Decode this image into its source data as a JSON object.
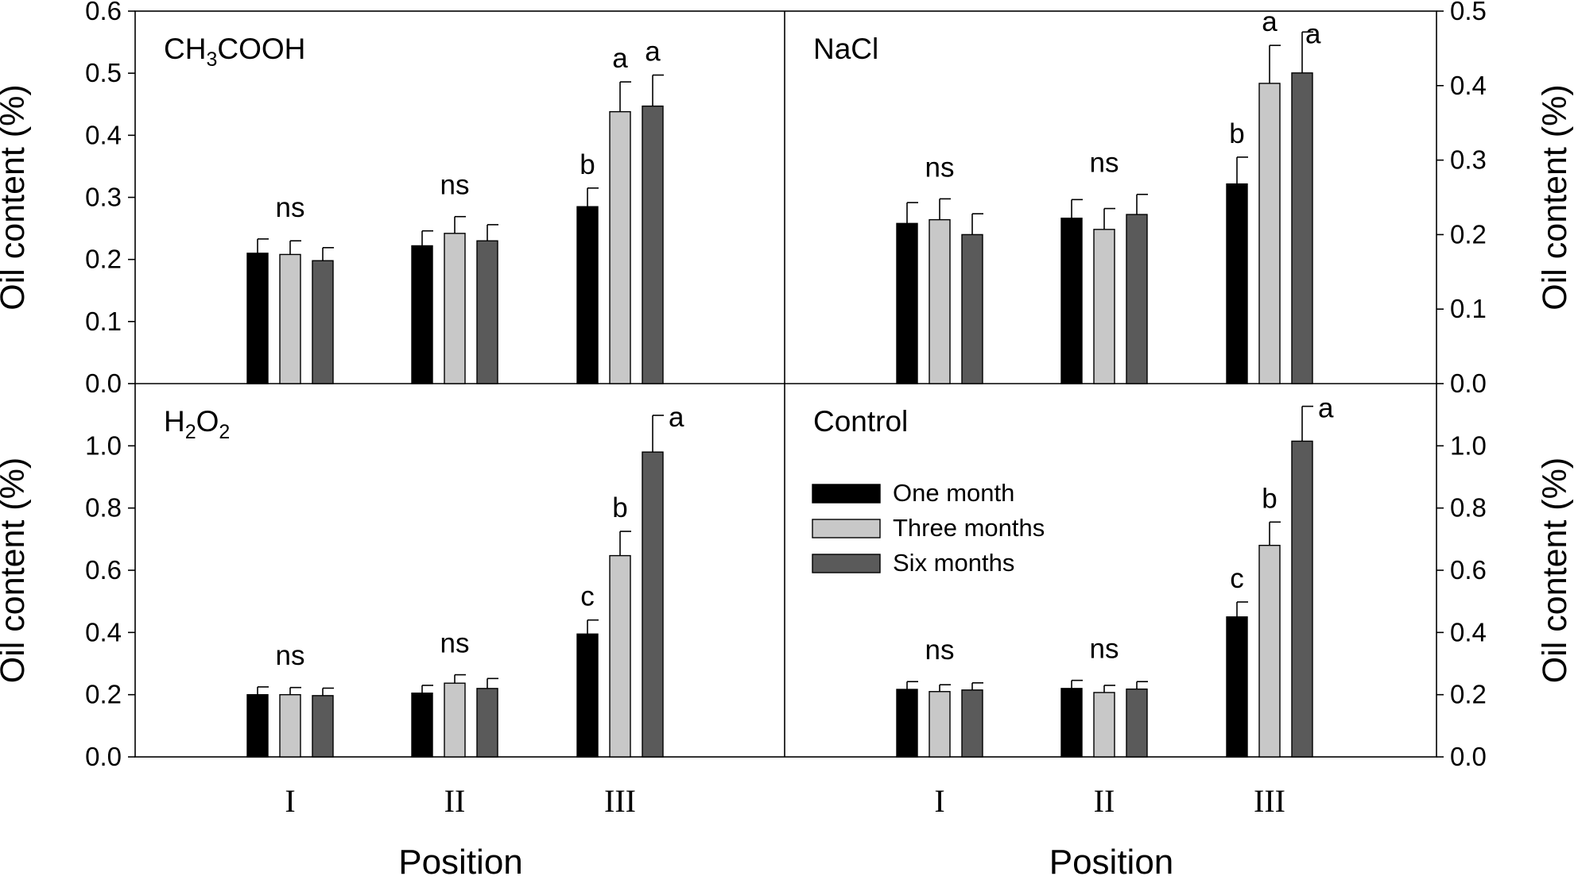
{
  "colors": {
    "one_month": "#000000",
    "three_months": "#c8c8c8",
    "six_months": "#5a5a5a",
    "axis": "#000000"
  },
  "chart_data": [
    {
      "type": "bar",
      "panel": "top-left",
      "label_main": "CH",
      "label_sub": "3",
      "label_rest": "COOH",
      "ylabel": "Oil content (%)",
      "ylabel_side": "left",
      "ylim": [
        0,
        0.6
      ],
      "yticks": [
        0.0,
        0.1,
        0.2,
        0.3,
        0.4,
        0.5,
        0.6
      ],
      "ytick_labels": [
        "0.0",
        "0.1",
        "0.2",
        "0.3",
        "0.4",
        "0.5",
        "0.6"
      ],
      "categories": [
        "I",
        "II",
        "III"
      ],
      "series": [
        {
          "name": "One month",
          "values": [
            0.21,
            0.222,
            0.285
          ],
          "errors": [
            0.023,
            0.024,
            0.03
          ]
        },
        {
          "name": "Three months",
          "values": [
            0.208,
            0.242,
            0.438
          ],
          "errors": [
            0.022,
            0.027,
            0.048
          ]
        },
        {
          "name": "Six months",
          "values": [
            0.198,
            0.23,
            0.447
          ],
          "errors": [
            0.021,
            0.026,
            0.05
          ]
        }
      ],
      "annotations": [
        {
          "category": "I",
          "text": "ns"
        },
        {
          "category": "II",
          "text": "ns"
        },
        {
          "category": "III",
          "texts": [
            "b",
            "a",
            "a"
          ]
        }
      ]
    },
    {
      "type": "bar",
      "panel": "top-right",
      "label_main": "NaCl",
      "ylabel": "Oil content (%)",
      "ylabel_side": "right",
      "ylim": [
        0,
        0.5
      ],
      "yticks": [
        0.0,
        0.1,
        0.2,
        0.3,
        0.4,
        0.5
      ],
      "ytick_labels": [
        "0.0",
        "0.1",
        "0.2",
        "0.3",
        "0.4",
        "0.5"
      ],
      "categories": [
        "I",
        "II",
        "III"
      ],
      "series": [
        {
          "name": "One month",
          "values": [
            0.215,
            0.222,
            0.268
          ],
          "errors": [
            0.028,
            0.025,
            0.036
          ]
        },
        {
          "name": "Three months",
          "values": [
            0.22,
            0.207,
            0.403
          ],
          "errors": [
            0.028,
            0.028,
            0.051
          ]
        },
        {
          "name": "Six months",
          "values": [
            0.2,
            0.227,
            0.417
          ],
          "errors": [
            0.028,
            0.027,
            0.055
          ]
        }
      ],
      "annotations": [
        {
          "category": "I",
          "text": "ns"
        },
        {
          "category": "II",
          "text": "ns"
        },
        {
          "category": "III",
          "texts": [
            "b",
            "a",
            "a"
          ]
        }
      ]
    },
    {
      "type": "bar",
      "panel": "bottom-left",
      "label_main": "H",
      "label_sub": "2",
      "label_rest": "O",
      "label_sub2": "2",
      "ylabel": "Oil content (%)",
      "ylabel_side": "left",
      "ylim": [
        0,
        1.2
      ],
      "yticks": [
        0.0,
        0.2,
        0.4,
        0.6,
        0.8,
        1.0
      ],
      "ytick_labels": [
        "0.0",
        "0.2",
        "0.4",
        "0.6",
        "0.8",
        "1.0"
      ],
      "categories": [
        "I",
        "II",
        "III"
      ],
      "xlabel": "Position",
      "series": [
        {
          "name": "One month",
          "values": [
            0.2,
            0.205,
            0.395
          ],
          "errors": [
            0.025,
            0.025,
            0.045
          ]
        },
        {
          "name": "Three months",
          "values": [
            0.2,
            0.237,
            0.647
          ],
          "errors": [
            0.023,
            0.027,
            0.078
          ]
        },
        {
          "name": "Six months",
          "values": [
            0.197,
            0.22,
            0.98
          ],
          "errors": [
            0.024,
            0.032,
            0.118
          ]
        }
      ],
      "annotations": [
        {
          "category": "I",
          "text": "ns"
        },
        {
          "category": "II",
          "text": "ns"
        },
        {
          "category": "III",
          "texts": [
            "c",
            "b",
            "a"
          ]
        }
      ]
    },
    {
      "type": "bar",
      "panel": "bottom-right",
      "label_main": "Control",
      "ylabel": "Oil content (%)",
      "ylabel_side": "right",
      "ylim": [
        0,
        1.2
      ],
      "yticks": [
        0.0,
        0.2,
        0.4,
        0.6,
        0.8,
        1.0
      ],
      "ytick_labels": [
        "0.0",
        "0.2",
        "0.4",
        "0.6",
        "0.8",
        "1.0"
      ],
      "categories": [
        "I",
        "II",
        "III"
      ],
      "xlabel": "Position",
      "legend_position": "center",
      "series": [
        {
          "name": "One month",
          "values": [
            0.217,
            0.22,
            0.45
          ],
          "errors": [
            0.025,
            0.026,
            0.048
          ]
        },
        {
          "name": "Three months",
          "values": [
            0.21,
            0.207,
            0.68
          ],
          "errors": [
            0.022,
            0.023,
            0.075
          ]
        },
        {
          "name": "Six months",
          "values": [
            0.215,
            0.218,
            1.015
          ],
          "errors": [
            0.023,
            0.024,
            0.112
          ]
        }
      ],
      "annotations": [
        {
          "category": "I",
          "text": "ns"
        },
        {
          "category": "II",
          "text": "ns"
        },
        {
          "category": "III",
          "texts": [
            "c",
            "b",
            "a"
          ]
        }
      ]
    }
  ],
  "legend": {
    "items": [
      "One month",
      "Three months",
      "Six months"
    ]
  }
}
